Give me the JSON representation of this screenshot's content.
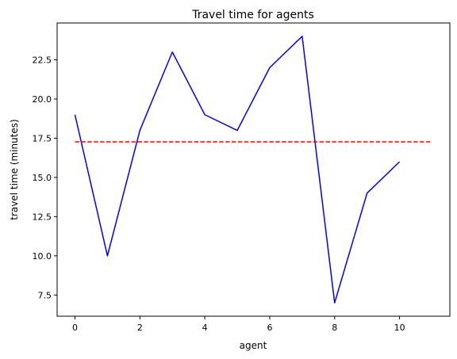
{
  "chart_data": {
    "type": "line",
    "title": "Travel time for agents",
    "xlabel": "agent",
    "ylabel": "travel time (minutes)",
    "xlim": [
      -0.55,
      11.55
    ],
    "ylim": [
      6.15,
      24.85
    ],
    "xticks": [
      0,
      2,
      4,
      6,
      8,
      10
    ],
    "yticks": [
      7.5,
      10.0,
      12.5,
      15.0,
      17.5,
      20.0,
      22.5
    ],
    "grid": false,
    "series": [
      {
        "x": [
          0,
          1,
          2,
          3,
          4,
          5,
          6,
          7,
          8,
          9,
          10
        ],
        "values": [
          19,
          10,
          18,
          23,
          19,
          18,
          22,
          24,
          7,
          14,
          16
        ],
        "color": "#0000ff",
        "style": "solid"
      },
      {
        "x": [
          0,
          11
        ],
        "values": [
          17.27,
          17.27
        ],
        "color": "#ff0000",
        "style": "dashed"
      }
    ]
  }
}
